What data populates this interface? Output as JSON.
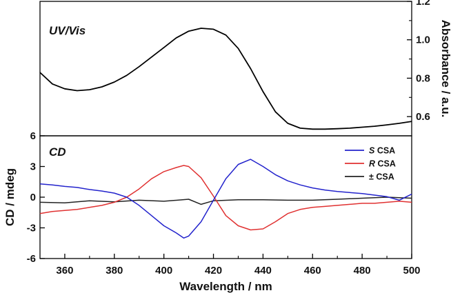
{
  "chart_data": [
    {
      "type": "line",
      "panel_label": "UV/Vis",
      "ylabel": "Absorbance / a.u.",
      "xlim": [
        350,
        500
      ],
      "ylim": [
        0.5,
        1.2
      ],
      "yticks": [
        "1.2",
        "1.0",
        "0.8",
        "0.6"
      ],
      "yticks_display": [
        "1.2",
        "1.0",
        "0.8",
        "0.6"
      ],
      "yaxis_side": "right",
      "series": [
        {
          "color": "#000000",
          "x": [
            350,
            355,
            360,
            365,
            370,
            375,
            380,
            385,
            390,
            395,
            400,
            405,
            410,
            415,
            420,
            425,
            430,
            435,
            440,
            445,
            450,
            455,
            460,
            465,
            470,
            475,
            480,
            485,
            490,
            495,
            500
          ],
          "y": [
            0.83,
            0.77,
            0.745,
            0.735,
            0.74,
            0.755,
            0.78,
            0.815,
            0.86,
            0.91,
            0.96,
            1.01,
            1.045,
            1.06,
            1.055,
            1.025,
            0.955,
            0.85,
            0.73,
            0.625,
            0.565,
            0.54,
            0.535,
            0.535,
            0.537,
            0.54,
            0.545,
            0.55,
            0.557,
            0.565,
            0.575
          ]
        }
      ]
    },
    {
      "type": "line",
      "panel_label": "CD",
      "xlabel": "Wavelength / nm",
      "ylabel": "CD / mdeg",
      "xlim": [
        350,
        500
      ],
      "ylim": [
        -6,
        6
      ],
      "xticks": [
        "360",
        "380",
        "400",
        "420",
        "440",
        "460",
        "480",
        "500"
      ],
      "yticks": [
        "6",
        "3",
        "0",
        "-3",
        "-6"
      ],
      "legend_position": "top-right",
      "series": [
        {
          "name_prefix": "S",
          "name_suffix": " CSA",
          "color": "#2222cc",
          "x": [
            350,
            355,
            360,
            365,
            370,
            375,
            380,
            385,
            390,
            395,
            400,
            405,
            408,
            410,
            415,
            420,
            425,
            430,
            435,
            440,
            445,
            450,
            455,
            460,
            465,
            470,
            475,
            480,
            485,
            490,
            495,
            500
          ],
          "y": [
            1.3,
            1.2,
            1.05,
            0.95,
            0.75,
            0.6,
            0.4,
            0.0,
            -0.8,
            -1.8,
            -2.8,
            -3.5,
            -4.0,
            -3.8,
            -2.4,
            -0.3,
            1.8,
            3.2,
            3.7,
            3.0,
            2.2,
            1.6,
            1.2,
            0.9,
            0.7,
            0.55,
            0.45,
            0.35,
            0.2,
            0.05,
            -0.3,
            0.3
          ]
        },
        {
          "name_prefix": "R",
          "name_suffix": " CSA",
          "color": "#e03030",
          "x": [
            350,
            355,
            360,
            365,
            370,
            375,
            380,
            385,
            390,
            395,
            400,
            405,
            408,
            410,
            415,
            420,
            425,
            430,
            435,
            440,
            445,
            450,
            455,
            460,
            465,
            470,
            475,
            480,
            485,
            490,
            495,
            500
          ],
          "y": [
            -1.6,
            -1.4,
            -1.3,
            -1.2,
            -1.0,
            -0.8,
            -0.5,
            0.0,
            0.8,
            1.8,
            2.5,
            2.9,
            3.1,
            3.0,
            1.9,
            0.1,
            -1.8,
            -2.8,
            -3.2,
            -3.1,
            -2.4,
            -1.6,
            -1.2,
            -1.0,
            -0.9,
            -0.8,
            -0.7,
            -0.6,
            -0.6,
            -0.5,
            -0.4,
            -0.5
          ]
        },
        {
          "name_prefix": "±",
          "name_suffix": " CSA",
          "color": "#222222",
          "x": [
            350,
            360,
            370,
            380,
            390,
            400,
            410,
            415,
            420,
            430,
            440,
            450,
            460,
            470,
            480,
            490,
            500
          ],
          "y": [
            -0.5,
            -0.55,
            -0.35,
            -0.45,
            -0.3,
            -0.4,
            -0.2,
            -0.7,
            -0.35,
            -0.25,
            -0.25,
            -0.3,
            -0.3,
            -0.2,
            -0.1,
            0.0,
            -0.1
          ]
        }
      ]
    }
  ]
}
